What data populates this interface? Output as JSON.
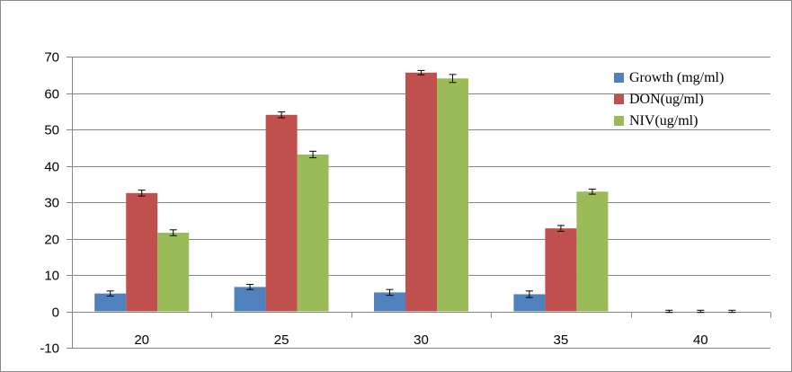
{
  "chart_data": {
    "type": "bar",
    "title": "",
    "xlabel": "",
    "ylabel": "",
    "categories": [
      "20",
      "25",
      "30",
      "35",
      "40"
    ],
    "ylim": [
      -10,
      70
    ],
    "yticks": [
      -10,
      0,
      10,
      20,
      30,
      40,
      50,
      60,
      70
    ],
    "grid": true,
    "legend_position": "top-right",
    "series": [
      {
        "name": "Growth (mg/ml)",
        "color": "#4f81bd",
        "values": [
          4.9,
          6.7,
          5.2,
          4.7,
          0
        ],
        "errors": [
          0.7,
          0.7,
          0.8,
          0.9,
          0.3
        ]
      },
      {
        "name": "DON(ug/ml)",
        "color": "#c0504d",
        "values": [
          32.5,
          54.0,
          65.6,
          22.8,
          0
        ],
        "errors": [
          0.8,
          0.8,
          0.6,
          0.8,
          0.3
        ]
      },
      {
        "name": "NIV(ug/ml)",
        "color": "#9bbb59",
        "values": [
          21.6,
          43.1,
          64.0,
          32.9,
          0
        ],
        "errors": [
          0.8,
          0.9,
          1.1,
          0.7,
          0.3
        ]
      }
    ]
  }
}
